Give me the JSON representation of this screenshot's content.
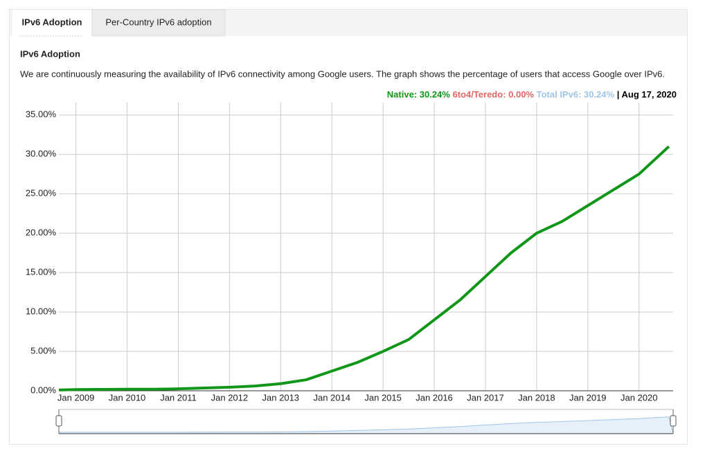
{
  "tabs": [
    "IPv6 Adoption",
    "Per-Country IPv6 adoption"
  ],
  "heading": "IPv6 Adoption",
  "description": "We are continuously measuring the availability of IPv6 connectivity among Google users. The graph shows the percentage of users that access Google over IPv6.",
  "chart_data": {
    "type": "line",
    "readout": [
      {
        "text": "Native: 30.24%",
        "color": "#109618"
      },
      {
        "text": "6to4/Teredo: 0.00%",
        "color": "#e06666"
      },
      {
        "text": "Total IPv6: 30.24%",
        "color": "#9fc5e8"
      }
    ],
    "date_label": "| Aug 17, 2020",
    "x": [
      "2008-09",
      "2009-01",
      "2009-07",
      "2010-01",
      "2010-07",
      "2011-01",
      "2011-07",
      "2012-01",
      "2012-07",
      "2013-01",
      "2013-07",
      "2014-01",
      "2014-07",
      "2015-01",
      "2015-07",
      "2016-01",
      "2016-07",
      "2017-01",
      "2017-07",
      "2018-01",
      "2018-07",
      "2019-01",
      "2019-07",
      "2020-01",
      "2020-08"
    ],
    "series": [
      {
        "name": "Native",
        "color": "#109618",
        "values": [
          0.1,
          0.15,
          0.18,
          0.2,
          0.2,
          0.25,
          0.35,
          0.45,
          0.6,
          0.9,
          1.4,
          2.5,
          3.6,
          5.0,
          6.5,
          9.0,
          11.5,
          14.5,
          17.5,
          20.0,
          21.5,
          23.5,
          25.5,
          27.5,
          31.0
        ]
      }
    ],
    "xlim": [
      "2008-09",
      "2020-09"
    ],
    "xticks": [
      {
        "value": "2009-01",
        "label": "Jan 2009"
      },
      {
        "value": "2010-01",
        "label": "Jan 2010"
      },
      {
        "value": "2011-01",
        "label": "Jan 2011"
      },
      {
        "value": "2012-01",
        "label": "Jan 2012"
      },
      {
        "value": "2013-01",
        "label": "Jan 2013"
      },
      {
        "value": "2014-01",
        "label": "Jan 2014"
      },
      {
        "value": "2015-01",
        "label": "Jan 2015"
      },
      {
        "value": "2016-01",
        "label": "Jan 2016"
      },
      {
        "value": "2017-01",
        "label": "Jan 2017"
      },
      {
        "value": "2018-01",
        "label": "Jan 2018"
      },
      {
        "value": "2019-01",
        "label": "Jan 2019"
      },
      {
        "value": "2020-01",
        "label": "Jan 2020"
      }
    ],
    "ylim": [
      0,
      36.6
    ],
    "yticks": [
      {
        "value": 0,
        "label": "0.00%"
      },
      {
        "value": 5,
        "label": "5.00%"
      },
      {
        "value": 10,
        "label": "10.00%"
      },
      {
        "value": 15,
        "label": "15.00%"
      },
      {
        "value": 20,
        "label": "20.00%"
      },
      {
        "value": 25,
        "label": "25.00%"
      },
      {
        "value": 30,
        "label": "30.00%"
      },
      {
        "value": 35,
        "label": "35.00%"
      }
    ],
    "grid": true,
    "navigator_color": "#9fc5e8"
  }
}
